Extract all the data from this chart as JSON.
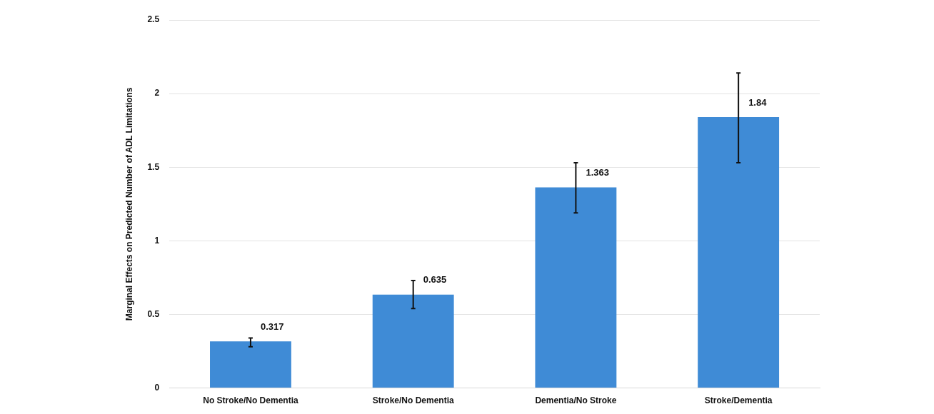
{
  "chart_data": {
    "type": "bar",
    "ylabel": "Marginal Effects on Predicted Number of ADL Limitations",
    "categories": [
      "No Stroke/No Dementia",
      "Stroke/No Dementia",
      "Dementia/No Stroke",
      "Stroke/Dementia"
    ],
    "values": [
      0.317,
      0.635,
      1.363,
      1.84
    ],
    "errors": [
      [
        0.28,
        0.34
      ],
      [
        0.54,
        0.73
      ],
      [
        1.19,
        1.53
      ],
      [
        1.53,
        2.14
      ]
    ],
    "color": "#3f8bd6",
    "data_labels": true,
    "grid": "y",
    "legend": false,
    "ylim": [
      0,
      2.5
    ],
    "yticks": [
      0,
      0.5,
      1,
      1.5,
      2,
      2.5
    ]
  }
}
